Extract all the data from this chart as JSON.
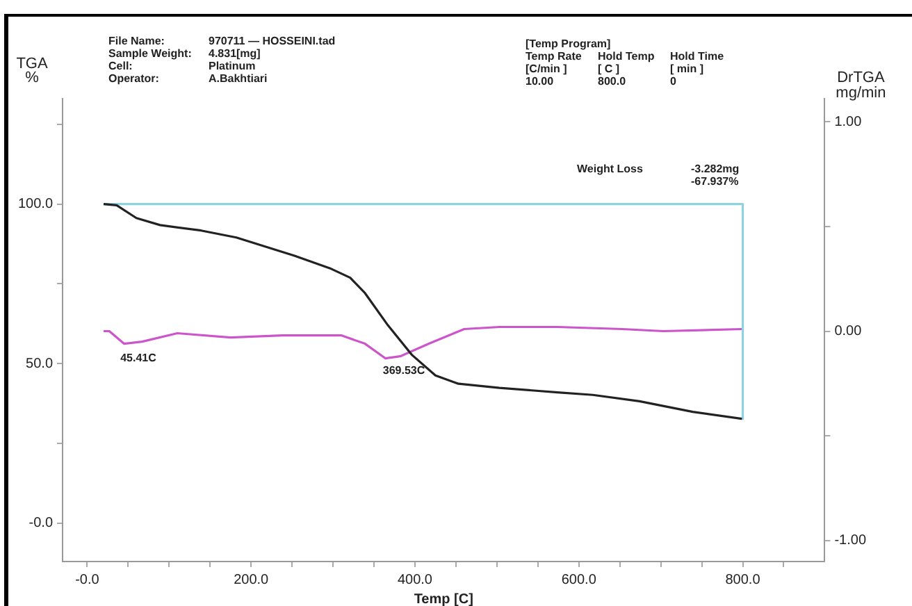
{
  "chart_data": {
    "type": "line",
    "xlabel": "Temp [C]",
    "ylabel": "TGA\n%",
    "y2label": "DrTGA\nmg/min",
    "xlim": [
      -30,
      900
    ],
    "xticks": [
      {
        "value": 0,
        "label": "-0.0"
      },
      {
        "value": 50,
        "label": null
      },
      {
        "value": 100,
        "label": null
      },
      {
        "value": 150,
        "label": null
      },
      {
        "value": 200,
        "label": "200.0"
      },
      {
        "value": 250,
        "label": null
      },
      {
        "value": 300,
        "label": null
      },
      {
        "value": 350,
        "label": null
      },
      {
        "value": 400,
        "label": "400.0"
      },
      {
        "value": 450,
        "label": null
      },
      {
        "value": 500,
        "label": null
      },
      {
        "value": 550,
        "label": null
      },
      {
        "value": 600,
        "label": "600.0"
      },
      {
        "value": 650,
        "label": null
      },
      {
        "value": 700,
        "label": null
      },
      {
        "value": 750,
        "label": null
      },
      {
        "value": 800,
        "label": "800.0"
      },
      {
        "value": 850,
        "label": null
      }
    ],
    "ylim": [
      -12,
      133
    ],
    "yticks": [
      {
        "value": 0,
        "label": "-0.0"
      },
      {
        "value": 25,
        "label": null
      },
      {
        "value": 50,
        "label": "50.0"
      },
      {
        "value": 75,
        "label": null
      },
      {
        "value": 100,
        "label": "100.0"
      },
      {
        "value": 125,
        "label": null
      }
    ],
    "y2lim": [
      -1.1,
      1.11
    ],
    "y2ticks": [
      {
        "value": -1,
        "label": "-1.00"
      },
      {
        "value": -0.5,
        "label": null
      },
      {
        "value": 0,
        "label": "0.00"
      },
      {
        "value": 0.5,
        "label": null
      },
      {
        "value": 1,
        "label": "1.00"
      }
    ],
    "grid": false,
    "legend": false,
    "marker": "none",
    "line_style": "solid",
    "series": [
      {
        "color": "#222222",
        "x": [
          20,
          36,
          60,
          89,
          139,
          182,
          253,
          296,
          321,
          339,
          367,
          396,
          425,
          453,
          503,
          574,
          617,
          674,
          739,
          799
        ],
        "values": [
          100,
          99.6,
          95.6,
          93.4,
          91.7,
          89.5,
          83.8,
          79.9,
          76.9,
          72.1,
          62,
          52.8,
          46.3,
          43.7,
          42.4,
          41,
          40.2,
          38.2,
          34.9,
          32.7
        ]
      },
      {
        "color": "#8fd3e0",
        "x": [
          20,
          800,
          800
        ],
        "values": [
          100,
          100,
          32.7
        ]
      },
      {
        "color": "#cc55cc",
        "axis": "y2",
        "x": [
          20,
          27,
          45,
          67,
          110,
          175,
          238,
          310,
          339,
          364,
          382,
          417,
          460,
          503,
          574,
          653,
          703,
          799
        ],
        "values": [
          0,
          0,
          -0.06,
          -0.05,
          -0.01,
          -0.03,
          -0.02,
          -0.02,
          -0.06,
          -0.13,
          -0.12,
          -0.06,
          0.01,
          0.02,
          0.02,
          0.01,
          0,
          0.01
        ]
      }
    ],
    "annotations": [
      "File Name:",
      "970711 — HOSSEINI.tad",
      "Sample Weight:",
      "4.831[mg]",
      "Cell:",
      "Platinum",
      "Operator:",
      "A.Bakhtiari",
      "[Temp Program]",
      "Temp Rate",
      "Hold Temp",
      "Hold Time",
      "[C/min ]",
      "[ C ]",
      "[ min ]",
      "10.00",
      "800.0",
      "0",
      "Weight Loss",
      "-3.282mg",
      "-67.937%",
      {
        "text": "45.41C",
        "x": 45.41,
        "y": 56
      },
      {
        "text": "369.53C",
        "x": 369.53,
        "y": 52
      }
    ]
  }
}
